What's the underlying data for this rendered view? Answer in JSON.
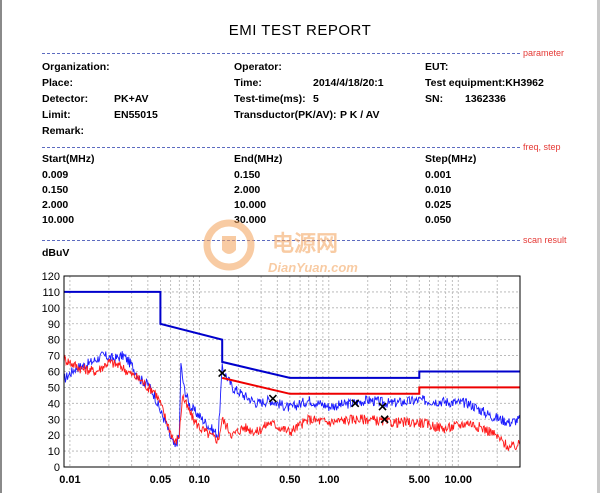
{
  "report": {
    "title": "EMI TEST REPORT",
    "sections": {
      "parameter": "parameter",
      "freq_step": "freq, step",
      "scan_result": "scan result"
    },
    "info": {
      "organization_label": "Organization:",
      "operator_label": "Operator:",
      "eut_label": "EUT:",
      "place_label": "Place:",
      "time_label": "Time:",
      "time_value": "2014/4/18/20:1",
      "equipment_label": "Test equipment:KH3962",
      "detector_label": "Detector:",
      "detector_value": "PK+AV",
      "testtime_label": "Test-time(ms):",
      "testtime_value": "5",
      "sn_label": "SN:",
      "sn_value": "1362336",
      "limit_label": "Limit:",
      "limit_value": "EN55015",
      "transductor_label": "Transductor(PK/AV):",
      "transductor_value": "P K  /  AV",
      "remark_label": "Remark:"
    },
    "freq_table": {
      "headers": [
        "Start(MHz)",
        "End(MHz)",
        "Step(MHz)"
      ],
      "rows": [
        [
          "0.009",
          "0.150",
          "0.001"
        ],
        [
          "0.150",
          "2.000",
          "0.010"
        ],
        [
          "2.000",
          "10.000",
          "0.025"
        ],
        [
          "10.000",
          "30.000",
          "0.050"
        ]
      ]
    },
    "watermark": {
      "text_cn": "电源网",
      "text_en": "DianYuan.com"
    }
  },
  "colors": {
    "pk_trace": "#1a1aff",
    "av_trace": "#ff1a1a",
    "limit_qp": "#0000cc",
    "limit_av": "#ee0000",
    "section_label": "#e53935",
    "separator": "#5c6bc0",
    "watermark": "#f4a259"
  },
  "chart_data": {
    "type": "line",
    "title": "",
    "xlabel": "",
    "ylabel": "dBuV",
    "x_scale": "log",
    "xlim": [
      0.009,
      30
    ],
    "ylim": [
      0,
      120
    ],
    "grid": true,
    "x_ticks": [
      0.01,
      0.05,
      0.1,
      0.5,
      1,
      5,
      10
    ],
    "x_tick_labels": [
      "0.01",
      "0.05",
      "0.10",
      "0.50",
      "1.00",
      "5.00",
      "10.00"
    ],
    "y_ticks": [
      0,
      10,
      20,
      30,
      40,
      50,
      60,
      70,
      80,
      90,
      100,
      110,
      120
    ],
    "limits": [
      {
        "points": [
          [
            0.009,
            110
          ],
          [
            0.05,
            110
          ],
          [
            0.05,
            90
          ],
          [
            0.15,
            80
          ],
          [
            0.15,
            66
          ],
          [
            0.5,
            56
          ],
          [
            5,
            56
          ],
          [
            5,
            60
          ],
          [
            30,
            60
          ]
        ]
      },
      {
        "points": [
          [
            0.15,
            56
          ],
          [
            0.5,
            46
          ],
          [
            5,
            46
          ],
          [
            5,
            50
          ],
          [
            30,
            50
          ]
        ]
      }
    ],
    "series": [
      {
        "points": [
          [
            0.009,
            55
          ],
          [
            0.011,
            62
          ],
          [
            0.014,
            65
          ],
          [
            0.018,
            70
          ],
          [
            0.022,
            68
          ],
          [
            0.026,
            70
          ],
          [
            0.03,
            64
          ],
          [
            0.035,
            55
          ],
          [
            0.04,
            52
          ],
          [
            0.045,
            45
          ],
          [
            0.05,
            35
          ],
          [
            0.055,
            28
          ],
          [
            0.06,
            18
          ],
          [
            0.065,
            12
          ],
          [
            0.07,
            20
          ],
          [
            0.072,
            64
          ],
          [
            0.076,
            50
          ],
          [
            0.085,
            38
          ],
          [
            0.1,
            32
          ],
          [
            0.12,
            25
          ],
          [
            0.14,
            20
          ],
          [
            0.15,
            62
          ],
          [
            0.18,
            50
          ],
          [
            0.22,
            45
          ],
          [
            0.28,
            40
          ],
          [
            0.35,
            42
          ],
          [
            0.5,
            37
          ],
          [
            0.7,
            42
          ],
          [
            1,
            38
          ],
          [
            1.5,
            40
          ],
          [
            2,
            42
          ],
          [
            3,
            40
          ],
          [
            5,
            42
          ],
          [
            8,
            41
          ],
          [
            12,
            40
          ],
          [
            18,
            32
          ],
          [
            25,
            28
          ],
          [
            30,
            30
          ]
        ]
      },
      {
        "points": [
          [
            0.009,
            68
          ],
          [
            0.012,
            62
          ],
          [
            0.016,
            60
          ],
          [
            0.02,
            66
          ],
          [
            0.025,
            63
          ],
          [
            0.03,
            58
          ],
          [
            0.035,
            55
          ],
          [
            0.04,
            50
          ],
          [
            0.045,
            48
          ],
          [
            0.05,
            40
          ],
          [
            0.055,
            30
          ],
          [
            0.06,
            22
          ],
          [
            0.065,
            15
          ],
          [
            0.07,
            20
          ],
          [
            0.074,
            45
          ],
          [
            0.08,
            38
          ],
          [
            0.09,
            30
          ],
          [
            0.1,
            25
          ],
          [
            0.12,
            20
          ],
          [
            0.14,
            17
          ],
          [
            0.15,
            30
          ],
          [
            0.18,
            20
          ],
          [
            0.22,
            25
          ],
          [
            0.28,
            22
          ],
          [
            0.35,
            28
          ],
          [
            0.5,
            22
          ],
          [
            0.7,
            30
          ],
          [
            1,
            28
          ],
          [
            1.5,
            30
          ],
          [
            2,
            30
          ],
          [
            3,
            28
          ],
          [
            5,
            28
          ],
          [
            8,
            24
          ],
          [
            12,
            28
          ],
          [
            18,
            22
          ],
          [
            25,
            12
          ],
          [
            30,
            14
          ]
        ]
      }
    ],
    "markers": [
      {
        "x": 0.15,
        "y": 59
      },
      {
        "x": 0.37,
        "y": 43
      },
      {
        "x": 1.6,
        "y": 40
      },
      {
        "x": 2.6,
        "y": 38
      },
      {
        "x": 2.7,
        "y": 30
      }
    ]
  }
}
